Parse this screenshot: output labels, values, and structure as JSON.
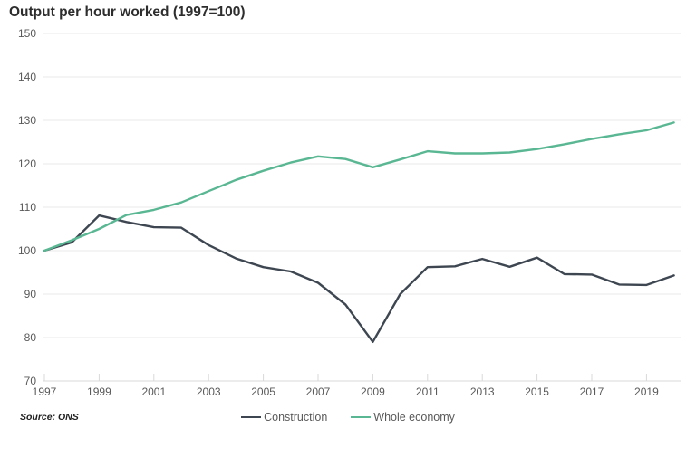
{
  "chart_data": {
    "type": "line",
    "title": "Output per hour worked (1997=100)",
    "x": [
      1997,
      1998,
      1999,
      2000,
      2001,
      2002,
      2003,
      2004,
      2005,
      2006,
      2007,
      2008,
      2009,
      2010,
      2011,
      2012,
      2013,
      2014,
      2015,
      2016,
      2017,
      2018,
      2019,
      2020
    ],
    "xticks": [
      1997,
      1999,
      2001,
      2003,
      2005,
      2007,
      2009,
      2011,
      2013,
      2015,
      2017,
      2019
    ],
    "yticks": [
      70,
      80,
      90,
      100,
      110,
      120,
      130,
      140,
      150
    ],
    "ylim": [
      70,
      150
    ],
    "grid": "horizontal",
    "legend_position": "bottom-center",
    "series": [
      {
        "name": "Construction",
        "color": "#3e4751",
        "values": [
          100,
          101.9,
          108.1,
          106.6,
          105.4,
          105.3,
          101.3,
          98.2,
          96.2,
          95.2,
          92.6,
          87.6,
          79.0,
          90.0,
          96.2,
          96.4,
          98.1,
          96.3,
          98.4,
          94.6,
          94.5,
          92.2,
          92.1,
          94.3
        ]
      },
      {
        "name": "Whole economy",
        "color": "#5ab793",
        "values": [
          100,
          102.4,
          105.0,
          108.2,
          109.4,
          111.1,
          113.7,
          116.3,
          118.4,
          120.3,
          121.7,
          121.1,
          119.2,
          121.0,
          122.9,
          122.4,
          122.4,
          122.6,
          123.4,
          124.5,
          125.7,
          126.8,
          127.7,
          129.5
        ]
      }
    ]
  },
  "source": "Source: ONS",
  "colors": {
    "grid": "#e9e9e9",
    "axis": "#d9d9d9",
    "tick_label": "#595959",
    "title": "#2d2d2d"
  }
}
